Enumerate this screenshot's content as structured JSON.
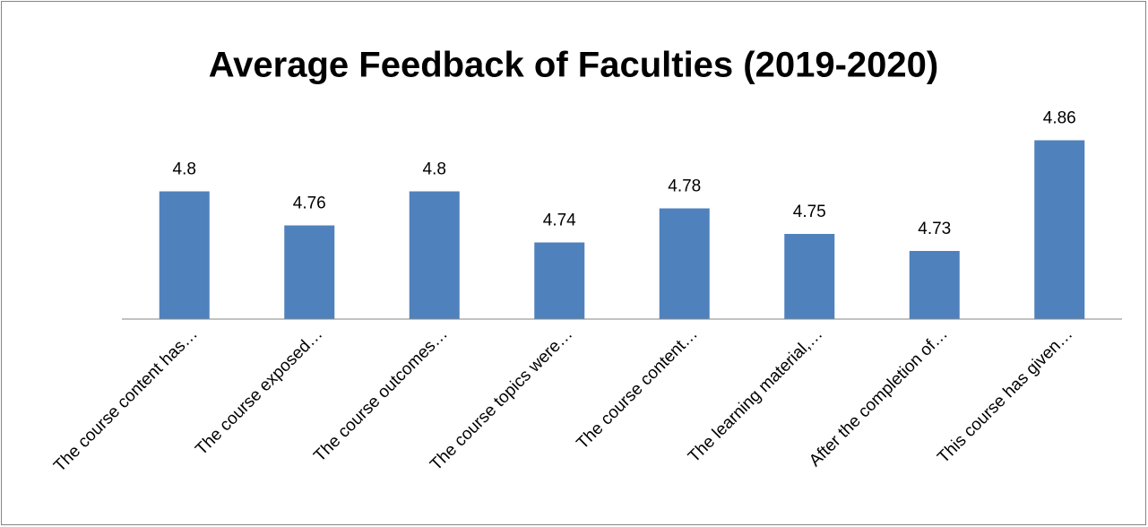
{
  "chart_data": {
    "type": "bar",
    "title": "Average Feedback of Faculties (2019-2020)",
    "categories": [
      "The course content has…",
      "The course exposed…",
      "The course outcomes…",
      "The course topics were…",
      "The course content…",
      "The learning material,…",
      "After the completion of…",
      "This course has given…"
    ],
    "values": [
      4.8,
      4.76,
      4.8,
      4.74,
      4.78,
      4.75,
      4.73,
      4.86
    ],
    "color": "#4f81bd",
    "ylim": [
      4.65,
      4.9
    ],
    "grid": false
  }
}
